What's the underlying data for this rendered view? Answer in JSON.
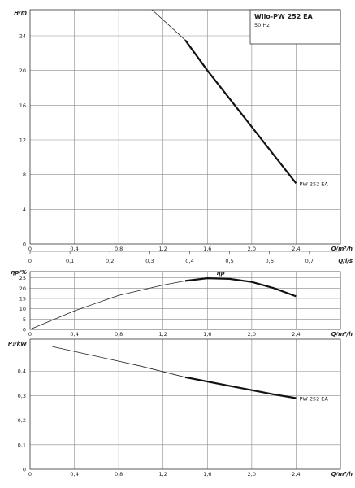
{
  "chart_data": [
    {
      "type": "line",
      "title": "Wilo-PW 252 EA",
      "subtitle": "50 Hz",
      "ylabel": "H/m",
      "xlabel": "Q/m³/h",
      "x2label": "Q/l/s",
      "xlim": [
        0,
        2.8
      ],
      "ylim": [
        0,
        27
      ],
      "xticks": [
        "0",
        "0,4",
        "0,8",
        "1,2",
        "1,6",
        "2,0",
        "2,4"
      ],
      "xtick_values": [
        0,
        0.4,
        0.8,
        1.2,
        1.6,
        2.0,
        2.4
      ],
      "yticks": [
        "0",
        "4",
        "8",
        "12",
        "16",
        "20",
        "24"
      ],
      "ytick_values": [
        0,
        4,
        8,
        12,
        16,
        20,
        24
      ],
      "x2ticks": [
        "0",
        "0,1",
        "0,2",
        "0,3",
        "0,4",
        "0,5",
        "0,6",
        "0,7",
        "0,8"
      ],
      "x2tick_values": [
        0,
        0.1,
        0.2,
        0.3,
        0.4,
        0.5,
        0.6,
        0.7,
        0.8
      ],
      "grid": true,
      "series": [
        {
          "name": "PW 252 EA",
          "x": [
            1.1,
            1.4,
            1.6,
            2.0,
            2.4
          ],
          "y": [
            27.0,
            23.5,
            20.0,
            13.5,
            7.0
          ],
          "bold_from_x": 1.4
        }
      ]
    },
    {
      "type": "line",
      "ylabel": "ηp/%",
      "xlabel": "Q/m³/h",
      "xlim": [
        0,
        2.8
      ],
      "ylim": [
        0,
        28
      ],
      "xticks": [
        "0",
        "0,4",
        "0,8",
        "1,2",
        "1,6",
        "2,0",
        "2,4"
      ],
      "xtick_values": [
        0,
        0.4,
        0.8,
        1.2,
        1.6,
        2.0,
        2.4
      ],
      "yticks": [
        "0",
        "5",
        "10",
        "15",
        "20",
        "25"
      ],
      "ytick_values": [
        0,
        5,
        10,
        15,
        20,
        25
      ],
      "grid": true,
      "series": [
        {
          "name": "ηp",
          "x": [
            0,
            0.4,
            0.8,
            1.2,
            1.4,
            1.6,
            1.8,
            2.0,
            2.2,
            2.4
          ],
          "y": [
            0,
            9.0,
            16.5,
            21.5,
            23.5,
            24.8,
            24.5,
            23.0,
            20.0,
            16.0
          ],
          "bold_from_x": 1.4
        }
      ]
    },
    {
      "type": "line",
      "ylabel": "P₁/kW",
      "xlabel": "Q/m³/h",
      "xlim": [
        0,
        2.8
      ],
      "ylim": [
        0,
        0.53
      ],
      "xticks": [
        "0",
        "0,4",
        "0,8",
        "1,2",
        "1,6",
        "2,0",
        "2,4"
      ],
      "xtick_values": [
        0,
        0.4,
        0.8,
        1.2,
        1.6,
        2.0,
        2.4
      ],
      "yticks": [
        "0",
        "0,1",
        "0,2",
        "0,3",
        "0,4"
      ],
      "ytick_values": [
        0,
        0.1,
        0.2,
        0.3,
        0.4
      ],
      "grid": true,
      "series": [
        {
          "name": "PW 252 EA",
          "x": [
            0.2,
            0.6,
            1.0,
            1.4,
            1.8,
            2.2,
            2.4
          ],
          "y": [
            0.5,
            0.46,
            0.42,
            0.375,
            0.34,
            0.305,
            0.29
          ],
          "bold_from_x": 1.4
        }
      ]
    }
  ]
}
